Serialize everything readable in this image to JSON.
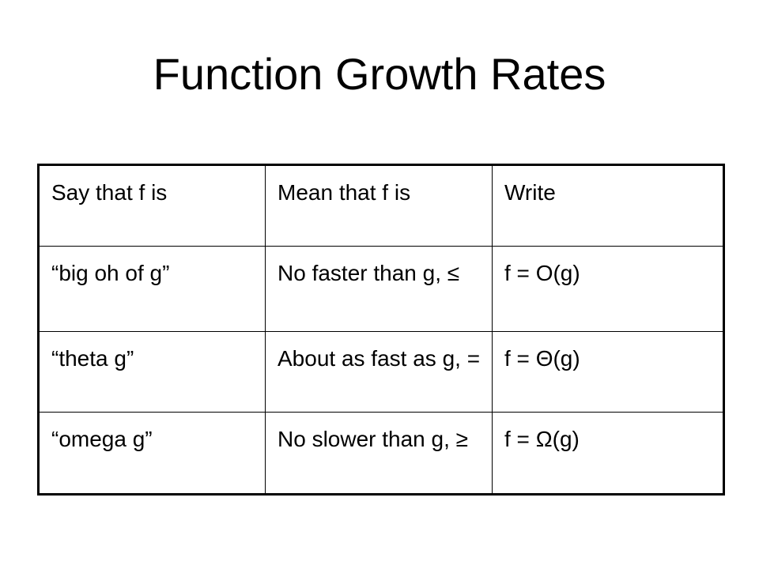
{
  "header": {
    "title": "Function Growth Rates"
  },
  "table": {
    "columns": [
      "Say that f is",
      "Mean that f is",
      "Write"
    ],
    "rows": [
      [
        "“big oh of g”",
        "No faster than g, ≤",
        "f = O(g)"
      ],
      [
        "“theta g”",
        "About as fast as g, =",
        "f = Θ(g)"
      ],
      [
        "“omega g”",
        "No slower than g, ≥",
        "f = Ω(g)"
      ]
    ]
  }
}
